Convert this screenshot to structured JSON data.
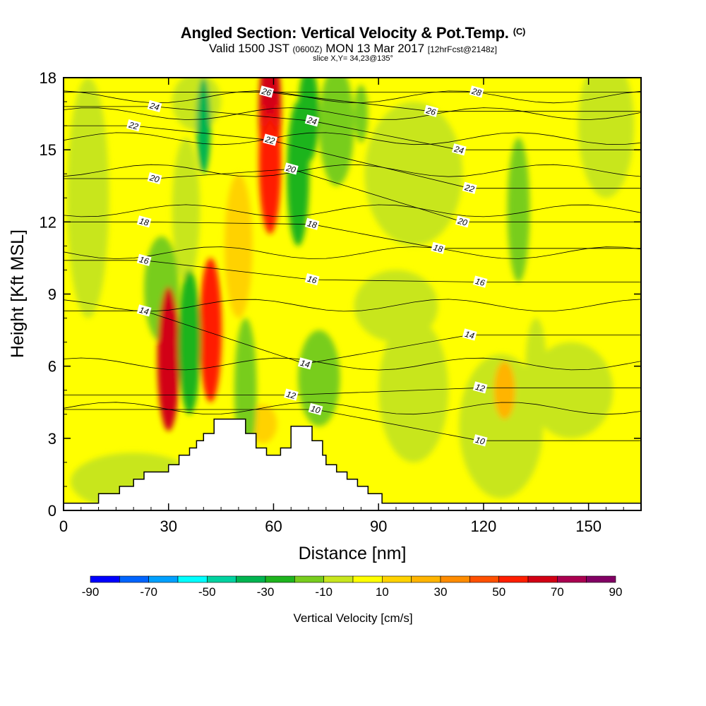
{
  "header": {
    "title": "Angled Section: Vertical Velocity & Pot.Temp.",
    "title_unit": "(C)",
    "subtitle_prefix": "Valid 1500 JST",
    "subtitle_zulu": "(0600Z)",
    "subtitle_date": "MON 13 Mar 2017",
    "subtitle_fcst": "[12hrFcst@2148z]",
    "slice": "slice X,Y= 34,23@135°"
  },
  "chart_data": {
    "type": "heatmap",
    "title": "Angled Section: Vertical Velocity & Pot.Temp. (C)",
    "xlabel": "Distance [nm]",
    "ylabel": "Height [Kft MSL]",
    "xlim": [
      0,
      165
    ],
    "ylim": [
      0,
      18
    ],
    "x_ticks": [
      0,
      30,
      60,
      90,
      120,
      150
    ],
    "y_ticks": [
      0,
      3,
      6,
      9,
      12,
      15,
      18
    ],
    "colorbar": {
      "label": "Vertical Velocity [cm/s]",
      "levels": [
        -90,
        -80,
        -70,
        -60,
        -50,
        -40,
        -30,
        -20,
        -10,
        0,
        10,
        20,
        30,
        40,
        50,
        60,
        70,
        80,
        90
      ],
      "tick_labels": [
        -90,
        -70,
        -50,
        -30,
        -10,
        10,
        30,
        50,
        70,
        90
      ],
      "colors": [
        "#0000ff",
        "#0064ff",
        "#00a0ff",
        "#00ffff",
        "#00d2a0",
        "#00b450",
        "#1eb41e",
        "#78cd1e",
        "#c8e61e",
        "#ffff00",
        "#ffd200",
        "#ffb400",
        "#ff8c00",
        "#ff5000",
        "#ff1e00",
        "#d20014",
        "#aa0050",
        "#820064"
      ]
    },
    "terrain": [
      [
        0,
        0.3
      ],
      [
        10,
        0.3
      ],
      [
        10,
        0.7
      ],
      [
        16,
        0.7
      ],
      [
        16,
        1.0
      ],
      [
        20,
        1.0
      ],
      [
        20,
        1.3
      ],
      [
        23,
        1.3
      ],
      [
        23,
        1.6
      ],
      [
        30,
        1.6
      ],
      [
        30,
        1.9
      ],
      [
        33,
        1.9
      ],
      [
        33,
        2.3
      ],
      [
        36,
        2.3
      ],
      [
        36,
        2.6
      ],
      [
        38,
        2.6
      ],
      [
        38,
        2.9
      ],
      [
        40,
        2.9
      ],
      [
        40,
        3.2
      ],
      [
        43,
        3.2
      ],
      [
        43,
        3.8
      ],
      [
        52,
        3.8
      ],
      [
        52,
        3.2
      ],
      [
        55,
        3.2
      ],
      [
        55,
        2.6
      ],
      [
        58,
        2.6
      ],
      [
        58,
        2.3
      ],
      [
        62,
        2.3
      ],
      [
        62,
        2.6
      ],
      [
        65,
        2.6
      ],
      [
        65,
        3.5
      ],
      [
        71,
        3.5
      ],
      [
        71,
        2.9
      ],
      [
        74,
        2.9
      ],
      [
        74,
        2.3
      ],
      [
        75,
        2.3
      ],
      [
        75,
        1.9
      ],
      [
        78,
        1.9
      ],
      [
        78,
        1.6
      ],
      [
        81,
        1.6
      ],
      [
        81,
        1.3
      ],
      [
        84,
        1.3
      ],
      [
        84,
        1.0
      ],
      [
        87,
        1.0
      ],
      [
        87,
        0.7
      ],
      [
        91,
        0.7
      ],
      [
        91,
        0.3
      ],
      [
        165,
        0.3
      ]
    ],
    "updraft_cores": [
      {
        "x": 30,
        "y": 6.3,
        "w_cms": 60
      },
      {
        "x": 42,
        "y": 7.5,
        "w_cms": 55
      },
      {
        "x": 59,
        "y": 16.5,
        "w_cms": 65
      },
      {
        "x": 59,
        "y": 14.5,
        "w_cms": 50
      }
    ],
    "downdraft_cores": [
      {
        "x": 36,
        "y": 7.0,
        "w_cms": -30
      },
      {
        "x": 52,
        "y": 5.0,
        "w_cms": -20
      },
      {
        "x": 67,
        "y": 14.0,
        "w_cms": -25
      },
      {
        "x": 130,
        "y": 12.5,
        "w_cms": -20
      }
    ],
    "theta_contours": {
      "interval": 1,
      "labeled_levels": [
        {
          "value": "24",
          "x": 26,
          "y": 16.8
        },
        {
          "value": "22",
          "x": 20,
          "y": 16.0
        },
        {
          "value": "20",
          "x": 26,
          "y": 13.8
        },
        {
          "value": "18",
          "x": 23,
          "y": 12.0
        },
        {
          "value": "16",
          "x": 23,
          "y": 10.4
        },
        {
          "value": "14",
          "x": 23,
          "y": 8.3
        },
        {
          "value": "26",
          "x": 58,
          "y": 17.4
        },
        {
          "value": "22",
          "x": 59,
          "y": 15.4
        },
        {
          "value": "24",
          "x": 71,
          "y": 16.2
        },
        {
          "value": "20",
          "x": 65,
          "y": 14.2
        },
        {
          "value": "18",
          "x": 71,
          "y": 11.9
        },
        {
          "value": "16",
          "x": 71,
          "y": 9.6
        },
        {
          "value": "14",
          "x": 69,
          "y": 6.1
        },
        {
          "value": "12",
          "x": 65,
          "y": 4.8
        },
        {
          "value": "10",
          "x": 72,
          "y": 4.2
        },
        {
          "value": "28",
          "x": 118,
          "y": 17.4
        },
        {
          "value": "26",
          "x": 105,
          "y": 16.6
        },
        {
          "value": "24",
          "x": 113,
          "y": 15.0
        },
        {
          "value": "22",
          "x": 116,
          "y": 13.4
        },
        {
          "value": "20",
          "x": 114,
          "y": 12.0
        },
        {
          "value": "18",
          "x": 107,
          "y": 10.9
        },
        {
          "value": "16",
          "x": 119,
          "y": 9.5
        },
        {
          "value": "14",
          "x": 116,
          "y": 7.3
        },
        {
          "value": "12",
          "x": 119,
          "y": 5.1
        },
        {
          "value": "10",
          "x": 119,
          "y": 2.9
        }
      ]
    }
  }
}
